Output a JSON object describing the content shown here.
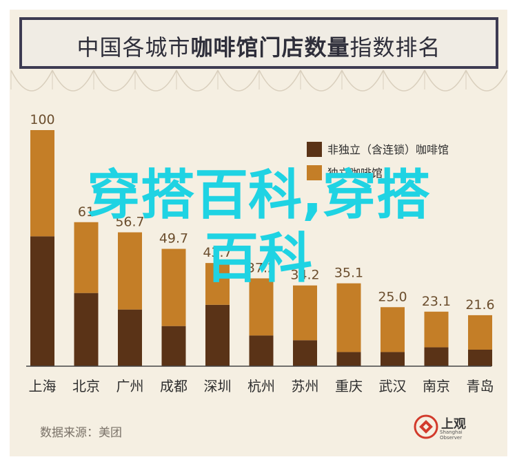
{
  "title": {
    "part1": "中国各城市",
    "part2": "咖啡馆门店数量",
    "part3": "指数排名"
  },
  "source": "数据来源：美团",
  "logo": {
    "name": "上观",
    "sub": "Shanghai Observer"
  },
  "watermark": {
    "line1": "穿搭百科,穿搭",
    "line2": "百科"
  },
  "colors": {
    "independent": "#c47e27",
    "chain": "#5a3317",
    "background": "#f5efe2",
    "banner": "#3d3b52"
  },
  "chart_data": {
    "type": "bar",
    "stacked": true,
    "categories": [
      "上海",
      "北京",
      "广州",
      "成都",
      "深圳",
      "杭州",
      "苏州",
      "重庆",
      "武汉",
      "南京",
      "青岛"
    ],
    "totals": [
      100,
      61,
      56.7,
      49.7,
      43.7,
      37.2,
      34.2,
      35.1,
      25.0,
      23.1,
      21.6
    ],
    "total_labels": [
      "100",
      "61",
      "56.7",
      "49.7",
      "43.7",
      "37.2",
      "34.2",
      "35.1",
      "25.0",
      "23.1",
      "21.6"
    ],
    "series": [
      {
        "name": "非独立（含连锁）咖啡馆",
        "values": [
          55,
          31,
          24,
          17,
          26,
          13,
          11,
          6,
          6,
          8,
          7
        ]
      },
      {
        "name": "独立咖啡馆",
        "values": [
          45,
          30,
          32.7,
          32.7,
          17.7,
          24.2,
          23.2,
          29.1,
          19,
          15.1,
          14.6
        ]
      }
    ],
    "ylim": [
      0,
      100
    ],
    "legend_position": "top-right",
    "grid": false
  }
}
